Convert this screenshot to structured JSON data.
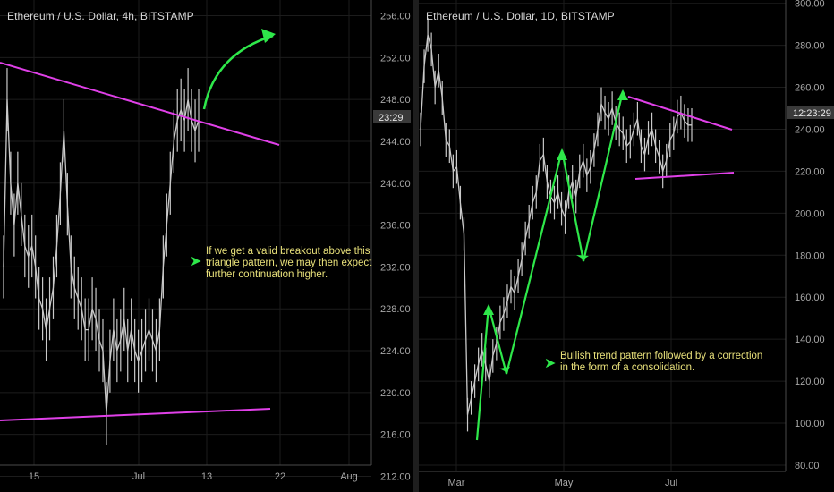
{
  "colors": {
    "background": "#000000",
    "candles": "#c9c9c9",
    "trendline": "#e040e8",
    "arrow": "#2ee84a",
    "annotation_text": "#e8e07a",
    "axis_text": "#a8a8a8",
    "price_tag_bg": "#3a3a3a"
  },
  "icons": {
    "annotation_bullet": "arrow-right-icon"
  },
  "chart_data": [
    {
      "type": "line",
      "title": "Ethereum / U.S. Dollar, 4h, BITSTAMP",
      "y_ticks": [
        "256.00",
        "252.00",
        "248.00",
        "244.00",
        "240.00",
        "236.00",
        "232.00",
        "228.00",
        "224.00",
        "220.00",
        "216.00",
        "212.00"
      ],
      "ylim": [
        210.5,
        257.5
      ],
      "x_ticks": [
        "15",
        "Jul",
        "13",
        "22",
        "Aug"
      ],
      "price_tag": "23:29",
      "series": [
        {
          "x": [
            0,
            4,
            8,
            12,
            16,
            20,
            24,
            28,
            32,
            36,
            40,
            44,
            48,
            52,
            56,
            60,
            64,
            68,
            72,
            76,
            80,
            84,
            88,
            92,
            96,
            100,
            104,
            108,
            112,
            116,
            120,
            124,
            128,
            132,
            136,
            140,
            144,
            148,
            152,
            156,
            160,
            164,
            168,
            172,
            176,
            180,
            184,
            188,
            192,
            196,
            200,
            204,
            208,
            212,
            216,
            220
          ],
          "values": [
            232,
            248,
            240,
            236,
            240,
            237,
            234,
            233,
            234,
            232,
            229,
            228,
            226,
            228,
            230,
            234,
            239,
            245,
            238,
            232,
            230,
            229,
            228,
            226,
            226,
            228,
            227,
            225,
            224,
            218,
            223,
            226,
            224,
            225,
            227,
            224,
            226,
            224,
            223,
            224,
            225,
            226,
            225,
            224,
            226,
            232,
            236,
            240,
            244,
            246,
            247,
            246,
            248,
            246,
            245,
            246
          ]
        }
      ],
      "annotations": [
        "If we get a valid breakout above this",
        "triangle pattern, we may then expect",
        "further continuation higher."
      ]
    },
    {
      "type": "line",
      "title": "Ethereum / U.S. Dollar, 1D, BITSTAMP",
      "y_ticks": [
        "300.00",
        "280.00",
        "260.00",
        "240.00",
        "220.00",
        "200.00",
        "180.00",
        "160.00",
        "140.00",
        "120.00",
        "100.00",
        "80.00"
      ],
      "ylim": [
        77,
        302
      ],
      "x_ticks": [
        "Mar",
        "May",
        "Jul"
      ],
      "price_tag": "12:23:29",
      "series": [
        {
          "x": [
            0,
            4,
            8,
            12,
            16,
            20,
            24,
            28,
            32,
            36,
            40,
            44,
            48,
            52,
            56,
            60,
            64,
            68,
            72,
            76,
            80,
            84,
            88,
            92,
            96,
            100,
            104,
            108,
            112,
            116,
            120,
            124,
            128,
            132,
            136,
            140,
            144,
            148,
            152,
            156,
            160,
            164,
            168,
            172,
            176,
            180,
            184,
            188,
            192,
            196,
            200,
            204,
            208,
            212,
            216,
            220,
            224,
            228,
            232,
            236,
            240,
            244,
            248,
            252,
            256,
            260,
            264,
            268,
            272,
            276,
            280,
            284,
            288,
            292,
            296,
            300
          ],
          "values": [
            240,
            270,
            285,
            278,
            260,
            268,
            255,
            235,
            232,
            220,
            222,
            205,
            190,
            104,
            112,
            120,
            128,
            135,
            128,
            120,
            132,
            138,
            148,
            152,
            158,
            165,
            162,
            170,
            178,
            188,
            196,
            205,
            210,
            225,
            228,
            215,
            208,
            205,
            210,
            202,
            198,
            210,
            215,
            208,
            220,
            225,
            218,
            222,
            230,
            240,
            252,
            248,
            245,
            250,
            243,
            240,
            238,
            232,
            234,
            240,
            245,
            232,
            228,
            236,
            240,
            232,
            227,
            220,
            225,
            235,
            238,
            246,
            248,
            244,
            242,
            242
          ]
        }
      ],
      "annotations": [
        "Bullish trend pattern followed by a correction",
        "in the form of a consolidation."
      ]
    }
  ]
}
